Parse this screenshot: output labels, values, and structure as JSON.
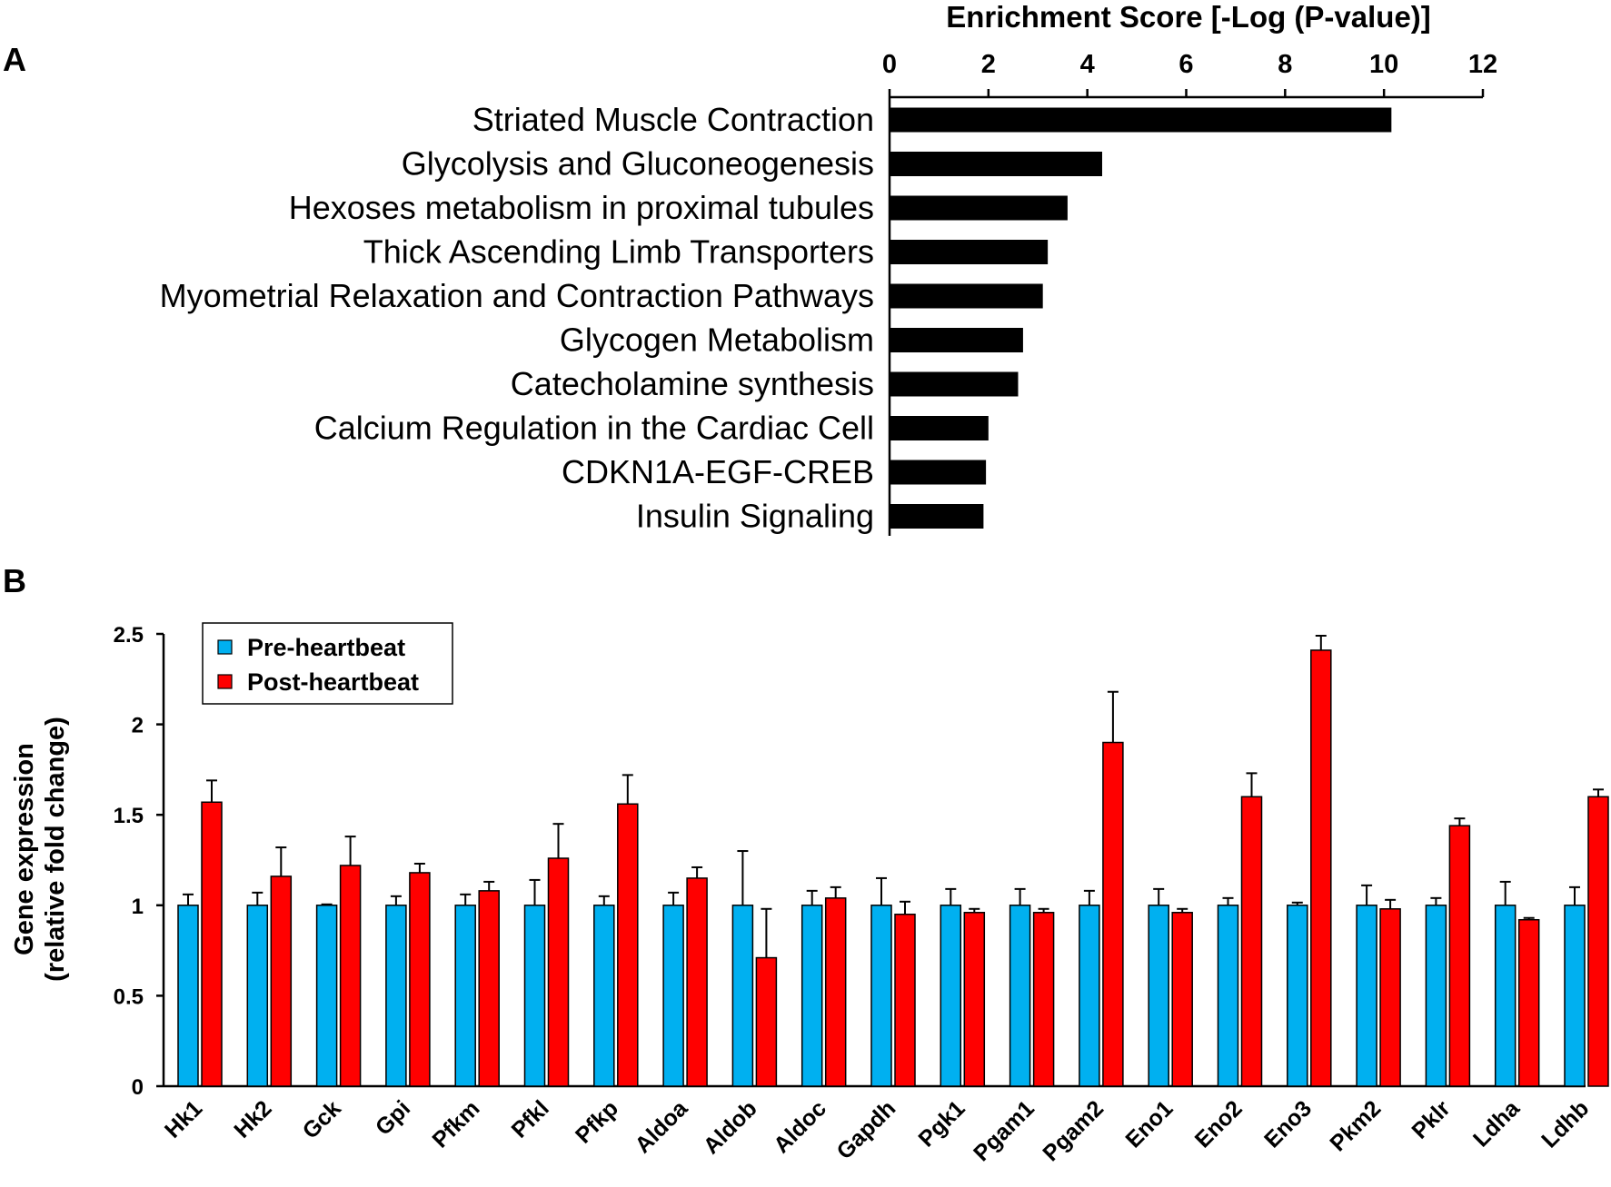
{
  "chart_data": [
    {
      "panel": "A",
      "type": "bar",
      "orientation": "horizontal",
      "title": "Enrichment Score [-Log (P-value)]",
      "xlabel": "Enrichment Score [-Log (P-value)]",
      "xlim": [
        0,
        12
      ],
      "xticks": [
        "0",
        "2",
        "4",
        "6",
        "8",
        "10",
        "12"
      ],
      "xticks_values": [
        0,
        2,
        4,
        6,
        8,
        10,
        12
      ],
      "axis_position": "top",
      "categories": [
        "Striated Muscle Contraction",
        "Glycolysis and Gluconeogenesis",
        "Hexoses metabolism in proximal tubules",
        "Thick Ascending Limb Transporters",
        "Myometrial Relaxation and Contraction Pathways",
        "Glycogen Metabolism",
        "Catecholamine synthesis",
        "Calcium Regulation in the Cardiac Cell",
        "CDKN1A-EGF-CREB",
        "Insulin Signaling"
      ],
      "values": [
        10.15,
        4.3,
        3.6,
        3.2,
        3.1,
        2.7,
        2.6,
        2.0,
        1.95,
        1.9
      ],
      "color": "#000000"
    },
    {
      "panel": "B",
      "type": "bar",
      "orientation": "vertical",
      "ylabel_line1": "Gene expression",
      "ylabel_line2": "(relative fold change)",
      "ylim": [
        0,
        2.5
      ],
      "yticks": [
        "0",
        "0.5",
        "1",
        "1.5",
        "2",
        "2.5"
      ],
      "yticks_values": [
        0,
        0.5,
        1,
        1.5,
        2,
        2.5
      ],
      "legend_position": "top-left",
      "categories": [
        "Hk1",
        "Hk2",
        "Gck",
        "Gpi",
        "Pfkm",
        "Pfkl",
        "Pfkp",
        "Aldoa",
        "Aldob",
        "Aldoc",
        "Gapdh",
        "Pgk1",
        "Pgam1",
        "Pgam2",
        "Eno1",
        "Eno2",
        "Eno3",
        "Pkm2",
        "Pklr",
        "Ldha",
        "Ldhb"
      ],
      "series": [
        {
          "name": "Pre-heartbeat",
          "color": "#00b0f0",
          "values": [
            1,
            1,
            1,
            1,
            1,
            1,
            1,
            1,
            1,
            1,
            1,
            1,
            1,
            1,
            1,
            1,
            1,
            1,
            1,
            1,
            1
          ],
          "errors": [
            0.06,
            0.07,
            0.005,
            0.05,
            0.06,
            0.14,
            0.05,
            0.07,
            0.3,
            0.08,
            0.15,
            0.09,
            0.09,
            0.08,
            0.09,
            0.04,
            0.015,
            0.11,
            0.04,
            0.13,
            0.1
          ]
        },
        {
          "name": "Post-heartbeat",
          "color": "#ff0000",
          "values": [
            1.57,
            1.16,
            1.22,
            1.18,
            1.08,
            1.26,
            1.56,
            1.15,
            0.71,
            1.04,
            0.95,
            0.96,
            0.96,
            1.9,
            0.96,
            1.6,
            2.41,
            0.98,
            1.44,
            0.92,
            1.6
          ],
          "errors": [
            0.12,
            0.16,
            0.16,
            0.05,
            0.05,
            0.19,
            0.16,
            0.06,
            0.27,
            0.06,
            0.07,
            0.02,
            0.02,
            0.28,
            0.02,
            0.13,
            0.08,
            0.05,
            0.04,
            0.01,
            0.04
          ]
        }
      ]
    }
  ],
  "panel_labels": {
    "a": "A",
    "b": "B"
  }
}
